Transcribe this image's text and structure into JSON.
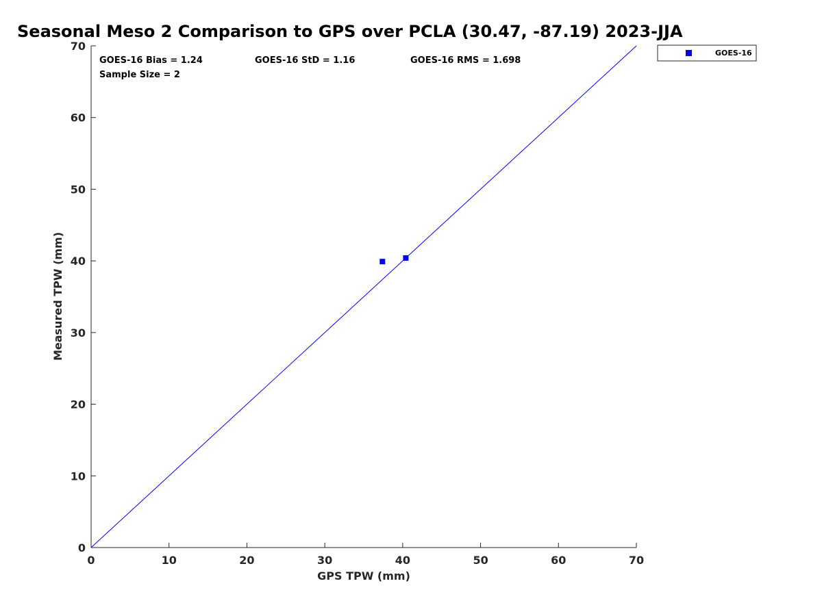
{
  "chart_data": {
    "type": "scatter",
    "title": "Seasonal Meso 2 Comparison to GPS over PCLA (30.47, -87.19) 2023-JJA",
    "xlabel": "GPS TPW (mm)",
    "ylabel": "Measured TPW (mm)",
    "xlim": [
      0,
      70
    ],
    "ylim": [
      0,
      70
    ],
    "xticks": [
      0,
      10,
      20,
      30,
      40,
      50,
      60,
      70
    ],
    "yticks": [
      0,
      10,
      20,
      30,
      40,
      50,
      60,
      70
    ],
    "grid": false,
    "legend_position": "outside-top-right",
    "series": [
      {
        "name": "GOES-16",
        "color": "#0000ff",
        "marker": "square",
        "x": [
          37.4,
          40.4
        ],
        "y": [
          39.9,
          40.4
        ]
      }
    ],
    "reference_line": {
      "type": "one-to-one",
      "color": "#0000ff"
    },
    "annotations": {
      "bias": "GOES-16 Bias = 1.24",
      "std": "GOES-16 StD = 1.16",
      "rms": "GOES-16 RMS = 1.698",
      "sample_size": "Sample Size = 2"
    }
  }
}
